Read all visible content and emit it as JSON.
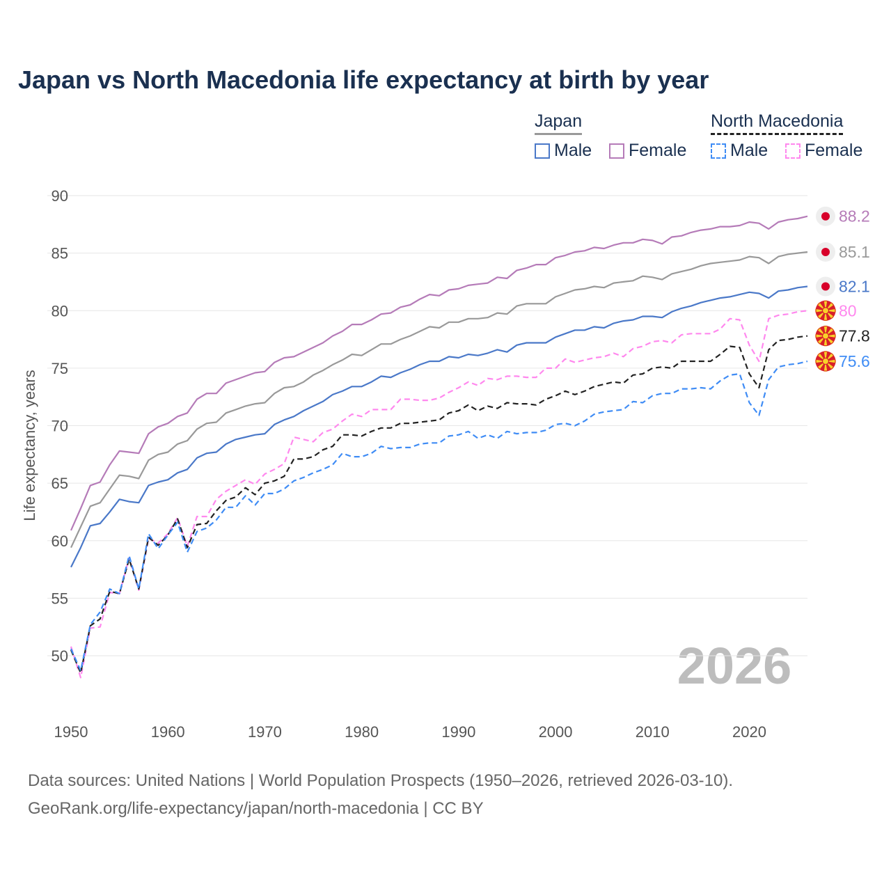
{
  "title": "Japan vs North Macedonia life expectancy at birth by year",
  "legend": {
    "japan": {
      "label": "Japan",
      "male": "Male",
      "female": "Female"
    },
    "north_macedonia": {
      "label": "North Macedonia",
      "male": "Male",
      "female": "Female"
    }
  },
  "year_watermark": "2026",
  "footer": {
    "line1": "Data sources: United Nations | World Population Prospects (1950–2026, retrieved 2026-03-10).",
    "line2": "GeoRank.org/life-expectancy/japan/north-macedonia | CC BY"
  },
  "colors": {
    "jp_female": "#b57bb8",
    "jp_both": "#999999",
    "jp_male": "#4a78c8",
    "nm_female": "#ff88ee",
    "nm_both": "#222222",
    "nm_male": "#3f8cf5"
  },
  "chart_data": {
    "type": "line",
    "title": "Japan vs North Macedonia life expectancy at birth by year",
    "xlabel": "",
    "ylabel": "Life expectancy, years",
    "xlim": [
      1950,
      2026
    ],
    "ylim": [
      47.5,
      90
    ],
    "xticks": [
      1950,
      1960,
      1970,
      1980,
      1990,
      2000,
      2010,
      2020
    ],
    "yticks": [
      50,
      55,
      60,
      65,
      70,
      75,
      80,
      85,
      90
    ],
    "grid": true,
    "x_start": 1950,
    "series": [
      {
        "key": "jp_female",
        "name": "Japan Female",
        "dashed": false,
        "end_label": "88.2",
        "flag": "japan",
        "values": [
          60.9,
          62.8,
          64.8,
          65.1,
          66.6,
          67.8,
          67.7,
          67.6,
          69.3,
          69.9,
          70.2,
          70.8,
          71.1,
          72.3,
          72.8,
          72.8,
          73.7,
          74.0,
          74.3,
          74.6,
          74.7,
          75.5,
          75.9,
          76.0,
          76.4,
          76.8,
          77.2,
          77.8,
          78.2,
          78.8,
          78.8,
          79.2,
          79.7,
          79.8,
          80.3,
          80.5,
          81.0,
          81.4,
          81.3,
          81.8,
          81.9,
          82.2,
          82.3,
          82.4,
          82.9,
          82.8,
          83.5,
          83.7,
          84.0,
          84.0,
          84.6,
          84.8,
          85.1,
          85.2,
          85.5,
          85.4,
          85.7,
          85.9,
          85.9,
          86.2,
          86.1,
          85.8,
          86.4,
          86.5,
          86.8,
          87.0,
          87.1,
          87.3,
          87.3,
          87.4,
          87.7,
          87.6,
          87.1,
          87.7,
          87.9,
          88.0,
          88.2
        ]
      },
      {
        "key": "jp_both",
        "name": "Japan",
        "dashed": false,
        "end_label": "85.1",
        "flag": "japan",
        "values": [
          59.4,
          61.2,
          63.0,
          63.3,
          64.5,
          65.7,
          65.6,
          65.4,
          67.0,
          67.5,
          67.7,
          68.4,
          68.7,
          69.7,
          70.2,
          70.3,
          71.1,
          71.4,
          71.7,
          71.9,
          72.0,
          72.8,
          73.3,
          73.4,
          73.8,
          74.4,
          74.8,
          75.3,
          75.7,
          76.2,
          76.1,
          76.6,
          77.1,
          77.1,
          77.5,
          77.8,
          78.2,
          78.6,
          78.5,
          79.0,
          79.0,
          79.3,
          79.3,
          79.4,
          79.8,
          79.7,
          80.4,
          80.6,
          80.6,
          80.6,
          81.2,
          81.5,
          81.8,
          81.9,
          82.1,
          82.0,
          82.4,
          82.5,
          82.6,
          83.0,
          82.9,
          82.7,
          83.2,
          83.4,
          83.6,
          83.9,
          84.1,
          84.2,
          84.3,
          84.4,
          84.7,
          84.6,
          84.1,
          84.7,
          84.9,
          85.0,
          85.1
        ]
      },
      {
        "key": "jp_male",
        "name": "Japan Male",
        "dashed": false,
        "end_label": "82.1",
        "flag": "japan",
        "values": [
          57.7,
          59.4,
          61.3,
          61.5,
          62.5,
          63.6,
          63.4,
          63.3,
          64.8,
          65.1,
          65.3,
          65.9,
          66.2,
          67.2,
          67.6,
          67.7,
          68.4,
          68.8,
          69.0,
          69.2,
          69.3,
          70.1,
          70.5,
          70.8,
          71.3,
          71.7,
          72.1,
          72.7,
          73.0,
          73.4,
          73.4,
          73.8,
          74.3,
          74.2,
          74.6,
          74.9,
          75.3,
          75.6,
          75.6,
          76.0,
          75.9,
          76.2,
          76.1,
          76.3,
          76.6,
          76.4,
          77.0,
          77.2,
          77.2,
          77.2,
          77.7,
          78.0,
          78.3,
          78.3,
          78.6,
          78.5,
          78.9,
          79.1,
          79.2,
          79.5,
          79.5,
          79.4,
          79.9,
          80.2,
          80.4,
          80.7,
          80.9,
          81.1,
          81.2,
          81.4,
          81.6,
          81.5,
          81.1,
          81.7,
          81.8,
          82.0,
          82.1
        ]
      },
      {
        "key": "nm_female",
        "name": "North Macedonia Female",
        "dashed": true,
        "end_label": "80",
        "flag": "macedonia",
        "values": [
          50.8,
          48.1,
          52.4,
          52.5,
          55.5,
          55.4,
          58.5,
          55.7,
          60.2,
          59.8,
          60.6,
          62.0,
          59.5,
          62.1,
          62.1,
          63.6,
          64.3,
          64.8,
          65.3,
          64.9,
          65.8,
          66.2,
          66.7,
          69.0,
          68.8,
          68.6,
          69.4,
          69.7,
          70.4,
          71.0,
          70.8,
          71.4,
          71.4,
          71.4,
          72.3,
          72.3,
          72.2,
          72.2,
          72.4,
          72.9,
          73.3,
          73.8,
          73.5,
          74.1,
          74.0,
          74.3,
          74.3,
          74.2,
          74.2,
          75.0,
          75.0,
          75.8,
          75.5,
          75.7,
          75.9,
          76.0,
          76.3,
          76.0,
          76.7,
          76.9,
          77.3,
          77.4,
          77.2,
          77.9,
          78.0,
          78.0,
          78.0,
          78.4,
          79.3,
          79.2,
          77.0,
          75.6,
          79.3,
          79.6,
          79.7,
          79.9,
          80.0
        ]
      },
      {
        "key": "nm_both",
        "name": "North Macedonia",
        "dashed": true,
        "end_label": "77.8",
        "flag": "macedonia",
        "values": [
          50.5,
          48.5,
          52.6,
          53.2,
          55.6,
          55.4,
          58.4,
          55.8,
          60.3,
          59.6,
          60.5,
          61.9,
          59.4,
          61.4,
          61.5,
          62.6,
          63.5,
          63.8,
          64.6,
          64.0,
          65.0,
          65.2,
          65.6,
          67.1,
          67.1,
          67.3,
          67.9,
          68.2,
          69.2,
          69.2,
          69.1,
          69.5,
          69.8,
          69.8,
          70.2,
          70.2,
          70.3,
          70.4,
          70.5,
          71.1,
          71.3,
          71.8,
          71.3,
          71.7,
          71.5,
          72.0,
          71.9,
          71.9,
          71.8,
          72.3,
          72.6,
          73.0,
          72.7,
          73.0,
          73.4,
          73.6,
          73.8,
          73.7,
          74.4,
          74.5,
          75.0,
          75.1,
          75.0,
          75.6,
          75.6,
          75.6,
          75.6,
          76.2,
          76.9,
          76.8,
          74.5,
          73.3,
          76.6,
          77.4,
          77.5,
          77.7,
          77.8
        ]
      },
      {
        "key": "nm_male",
        "name": "North Macedonia Male",
        "dashed": true,
        "end_label": "75.6",
        "flag": "macedonia",
        "values": [
          50.6,
          48.7,
          52.7,
          53.8,
          55.8,
          55.4,
          58.7,
          55.8,
          60.6,
          59.3,
          60.5,
          61.6,
          59.0,
          60.8,
          61.1,
          61.8,
          62.9,
          62.9,
          63.9,
          63.1,
          64.1,
          64.1,
          64.5,
          65.2,
          65.5,
          65.9,
          66.2,
          66.6,
          67.6,
          67.3,
          67.3,
          67.6,
          68.2,
          68.0,
          68.1,
          68.1,
          68.4,
          68.5,
          68.5,
          69.1,
          69.2,
          69.5,
          68.9,
          69.2,
          68.9,
          69.5,
          69.3,
          69.4,
          69.4,
          69.6,
          70.1,
          70.2,
          70.0,
          70.4,
          71.0,
          71.2,
          71.3,
          71.4,
          72.1,
          72.0,
          72.6,
          72.8,
          72.8,
          73.2,
          73.2,
          73.3,
          73.2,
          73.9,
          74.4,
          74.5,
          72.0,
          70.9,
          74.0,
          75.1,
          75.3,
          75.4,
          75.6
        ]
      }
    ]
  }
}
